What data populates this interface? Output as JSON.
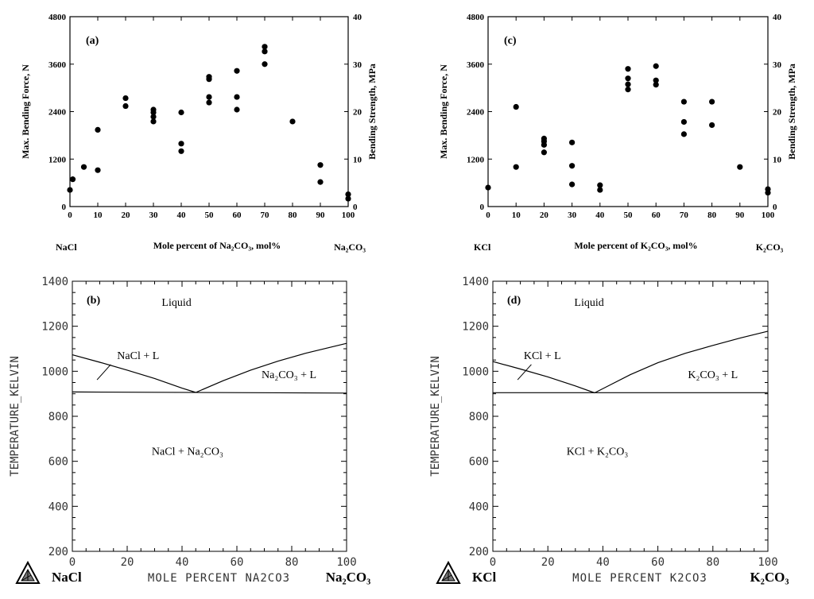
{
  "chart_data": [
    {
      "id": "a",
      "type": "scatter",
      "panel_label": "(a)",
      "xlabel": "Mole percent of Na₂CO₃, mol%",
      "left_end_label": "NaCl",
      "right_end_label": "Na₂CO₃",
      "ylabel": "Max. Bending Force, N",
      "y2label": "Bending Strength, MPa",
      "xlim": [
        0,
        100
      ],
      "ylim": [
        0,
        4800
      ],
      "y2lim": [
        0,
        40
      ],
      "xticks": [
        "0",
        "10",
        "20",
        "30",
        "40",
        "50",
        "60",
        "70",
        "80",
        "90",
        "100"
      ],
      "yticks": [
        "0",
        "1200",
        "2400",
        "3600",
        "4800"
      ],
      "y2ticks": [
        "0",
        "10",
        "20",
        "30",
        "40"
      ],
      "points": [
        [
          0,
          420
        ],
        [
          1,
          690
        ],
        [
          5,
          1000
        ],
        [
          10,
          920
        ],
        [
          10,
          1940
        ],
        [
          20,
          2540
        ],
        [
          20,
          2740
        ],
        [
          30,
          2150
        ],
        [
          30,
          2270
        ],
        [
          30,
          2380
        ],
        [
          30,
          2450
        ],
        [
          40,
          1400
        ],
        [
          40,
          1590
        ],
        [
          40,
          2380
        ],
        [
          50,
          2630
        ],
        [
          50,
          2770
        ],
        [
          50,
          3220
        ],
        [
          50,
          3280
        ],
        [
          60,
          2450
        ],
        [
          60,
          2770
        ],
        [
          60,
          3430
        ],
        [
          70,
          3600
        ],
        [
          70,
          3920
        ],
        [
          70,
          4040
        ],
        [
          80,
          2150
        ],
        [
          90,
          620
        ],
        [
          90,
          1050
        ],
        [
          100,
          200
        ],
        [
          100,
          310
        ]
      ]
    },
    {
      "id": "c",
      "type": "scatter",
      "panel_label": "(c)",
      "xlabel": "Mole percent of K₂CO₃, mol%",
      "left_end_label": "KCl",
      "right_end_label": "K₂CO₃",
      "ylabel": "Max. Bending Force, N",
      "y2label": "Bending Strength, MPa",
      "xlim": [
        0,
        100
      ],
      "ylim": [
        0,
        4800
      ],
      "y2lim": [
        0,
        40
      ],
      "xticks": [
        "0",
        "10",
        "20",
        "30",
        "40",
        "50",
        "60",
        "70",
        "80",
        "90",
        "100"
      ],
      "yticks": [
        "0",
        "1200",
        "2400",
        "3600",
        "4800"
      ],
      "y2ticks": [
        "0",
        "10",
        "20",
        "30",
        "40"
      ],
      "points": [
        [
          0,
          480
        ],
        [
          10,
          1000
        ],
        [
          10,
          2520
        ],
        [
          20,
          1370
        ],
        [
          20,
          1560
        ],
        [
          20,
          1650
        ],
        [
          20,
          1720
        ],
        [
          30,
          560
        ],
        [
          30,
          1030
        ],
        [
          30,
          1620
        ],
        [
          40,
          420
        ],
        [
          40,
          540
        ],
        [
          50,
          2960
        ],
        [
          50,
          3090
        ],
        [
          50,
          3240
        ],
        [
          50,
          3480
        ],
        [
          60,
          3080
        ],
        [
          60,
          3190
        ],
        [
          60,
          3550
        ],
        [
          70,
          1830
        ],
        [
          70,
          2140
        ],
        [
          70,
          2650
        ],
        [
          80,
          2060
        ],
        [
          80,
          2650
        ],
        [
          90,
          1000
        ],
        [
          100,
          350
        ],
        [
          100,
          440
        ]
      ]
    },
    {
      "id": "b",
      "type": "line",
      "panel_label": "(b)",
      "xlabel": "MOLE PERCENT NA2CO3",
      "ylabel": "TEMPERATURE_KELVIN",
      "left_end_label": "NaCl",
      "right_end_label": "Na₂CO₃",
      "xlim": [
        0,
        100
      ],
      "ylim": [
        200,
        1400
      ],
      "xticks": [
        "0",
        "20",
        "40",
        "60",
        "80",
        "100"
      ],
      "yticks": [
        "200",
        "400",
        "600",
        "800",
        "1000",
        "1200",
        "1400"
      ],
      "series": [
        {
          "values": [
            [
              0,
              1073
            ],
            [
              10,
              1040
            ],
            [
              20,
              1005
            ],
            [
              30,
              968
            ],
            [
              40,
              925
            ],
            [
              45,
              906
            ]
          ]
        },
        {
          "values": [
            [
              45,
              906
            ],
            [
              55,
              958
            ],
            [
              65,
              1005
            ],
            [
              75,
              1045
            ],
            [
              85,
              1080
            ],
            [
              100,
              1124
            ]
          ]
        },
        {
          "values": [
            [
              0,
              908
            ],
            [
              100,
              903
            ]
          ]
        }
      ],
      "annotations": [
        {
          "text": "Liquid",
          "x": 38,
          "y": 1290
        },
        {
          "text": "NaCl + L",
          "x": 24,
          "y": 1055
        },
        {
          "text": "Na₂CO₃ + L",
          "x": 79,
          "y": 970
        },
        {
          "text": "NaCl + Na₂CO₃",
          "x": 42,
          "y": 628
        }
      ],
      "leader_line": [
        [
          14,
          1030
        ],
        [
          9,
          962
        ]
      ]
    },
    {
      "id": "d",
      "type": "line",
      "panel_label": "(d)",
      "xlabel": "MOLE PERCENT K2CO3",
      "ylabel": "TEMPERATURE_KELVIN",
      "left_end_label": "KCl",
      "right_end_label": "K₂CO₃",
      "xlim": [
        0,
        100
      ],
      "ylim": [
        200,
        1400
      ],
      "xticks": [
        "0",
        "20",
        "40",
        "60",
        "80",
        "100"
      ],
      "yticks": [
        "200",
        "400",
        "600",
        "800",
        "1000",
        "1200",
        "1400"
      ],
      "series": [
        {
          "values": [
            [
              0,
              1043
            ],
            [
              10,
              1010
            ],
            [
              20,
              975
            ],
            [
              30,
              935
            ],
            [
              37,
              904
            ]
          ]
        },
        {
          "values": [
            [
              37,
              904
            ],
            [
              50,
              985
            ],
            [
              60,
              1038
            ],
            [
              70,
              1080
            ],
            [
              80,
              1115
            ],
            [
              90,
              1148
            ],
            [
              100,
              1178
            ]
          ]
        },
        {
          "values": [
            [
              0,
              905
            ],
            [
              100,
              905
            ]
          ]
        }
      ],
      "annotations": [
        {
          "text": "Liquid",
          "x": 35,
          "y": 1290
        },
        {
          "text": "KCl + L",
          "x": 18,
          "y": 1055
        },
        {
          "text": "K₂CO₃ + L",
          "x": 80,
          "y": 970
        },
        {
          "text": "KCl + K₂CO₃",
          "x": 38,
          "y": 628
        }
      ],
      "leader_line": [
        [
          14,
          1030
        ],
        [
          9,
          962
        ]
      ]
    }
  ]
}
